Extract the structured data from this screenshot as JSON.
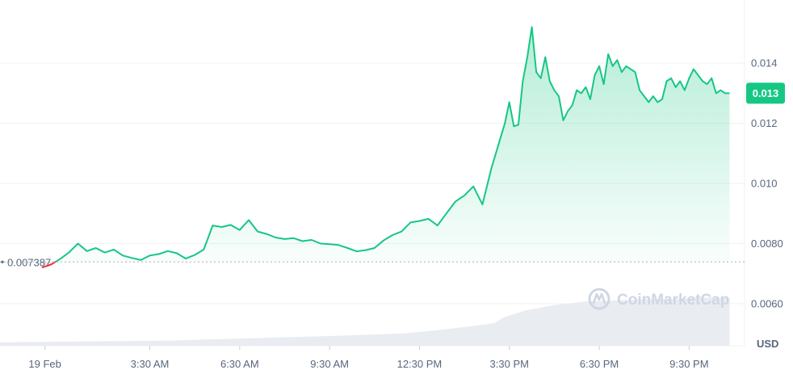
{
  "chart_data": {
    "type": "area",
    "currency": "USD",
    "reference_price": 0.007387,
    "reference_label": "0.007387",
    "current_price": 0.013,
    "current_label": "0.013",
    "ylim": [
      0.0046,
      0.0161
    ],
    "y_ticks": [
      {
        "value": 0.014,
        "label": "0.014"
      },
      {
        "value": 0.012,
        "label": "0.012"
      },
      {
        "value": 0.01,
        "label": "0.010"
      },
      {
        "value": 0.008,
        "label": "0.0080"
      },
      {
        "value": 0.006,
        "label": "0.0060"
      }
    ],
    "xlim": [
      -1.5,
      23.35
    ],
    "x_ticks": [
      {
        "value": 0,
        "label": "19 Feb"
      },
      {
        "value": 3.5,
        "label": "3:30 AM"
      },
      {
        "value": 6.5,
        "label": "6:30 AM"
      },
      {
        "value": 9.5,
        "label": "9:30 AM"
      },
      {
        "value": 12.5,
        "label": "12:30 PM"
      },
      {
        "value": 15.5,
        "label": "3:30 PM"
      },
      {
        "value": 18.5,
        "label": "6:30 PM"
      },
      {
        "value": 21.5,
        "label": "9:30 PM"
      }
    ],
    "price_series": {
      "x": [
        -0.1,
        0.2,
        0.5,
        0.8,
        1.1,
        1.4,
        1.7,
        2.0,
        2.3,
        2.6,
        2.9,
        3.2,
        3.5,
        3.8,
        4.1,
        4.4,
        4.7,
        5.0,
        5.3,
        5.6,
        5.9,
        6.2,
        6.5,
        6.8,
        7.1,
        7.4,
        7.7,
        8.0,
        8.3,
        8.6,
        8.9,
        9.2,
        9.5,
        9.8,
        10.1,
        10.4,
        10.7,
        11.0,
        11.3,
        11.6,
        11.9,
        12.2,
        12.5,
        12.8,
        13.1,
        13.4,
        13.7,
        14.0,
        14.3,
        14.6,
        14.9,
        15.2,
        15.35,
        15.5,
        15.65,
        15.8,
        15.95,
        16.1,
        16.25,
        16.4,
        16.55,
        16.7,
        16.85,
        17.0,
        17.15,
        17.3,
        17.45,
        17.6,
        17.75,
        17.9,
        18.05,
        18.2,
        18.35,
        18.5,
        18.65,
        18.8,
        18.95,
        19.1,
        19.25,
        19.4,
        19.55,
        19.7,
        19.85,
        20.0,
        20.15,
        20.3,
        20.45,
        20.6,
        20.75,
        20.9,
        21.05,
        21.2,
        21.35,
        21.5,
        21.65,
        21.8,
        21.95,
        22.1,
        22.25,
        22.4,
        22.55,
        22.7,
        22.85
      ],
      "y": [
        0.0072,
        0.0073,
        0.00748,
        0.0077,
        0.008,
        0.00775,
        0.00785,
        0.0077,
        0.0078,
        0.0076,
        0.00752,
        0.00745,
        0.0076,
        0.00765,
        0.00775,
        0.00768,
        0.0075,
        0.00762,
        0.0078,
        0.0086,
        0.00855,
        0.00862,
        0.00845,
        0.00878,
        0.0084,
        0.00832,
        0.0082,
        0.00815,
        0.00818,
        0.00808,
        0.00812,
        0.008,
        0.00798,
        0.00795,
        0.00785,
        0.00774,
        0.00778,
        0.00785,
        0.0081,
        0.00828,
        0.0084,
        0.0087,
        0.00875,
        0.00882,
        0.0086,
        0.009,
        0.0094,
        0.0096,
        0.0099,
        0.0093,
        0.0105,
        0.0115,
        0.012,
        0.0127,
        0.0119,
        0.01195,
        0.0134,
        0.0142,
        0.0152,
        0.0137,
        0.0135,
        0.0142,
        0.0134,
        0.0131,
        0.0129,
        0.0121,
        0.0124,
        0.0126,
        0.0131,
        0.013,
        0.0132,
        0.0128,
        0.0136,
        0.0139,
        0.0133,
        0.0143,
        0.0139,
        0.0141,
        0.0137,
        0.0139,
        0.0138,
        0.0137,
        0.0131,
        0.0129,
        0.0127,
        0.0129,
        0.0127,
        0.0128,
        0.0134,
        0.0135,
        0.0132,
        0.0134,
        0.0131,
        0.0135,
        0.0138,
        0.0136,
        0.0134,
        0.0133,
        0.0135,
        0.013,
        0.0131,
        0.013,
        0.013
      ]
    },
    "volume_series": {
      "x": [
        -1.5,
        0,
        2,
        4,
        6,
        8,
        10,
        12,
        13,
        14,
        15,
        15.3,
        16,
        17,
        18,
        19,
        20,
        21,
        22,
        22.85
      ],
      "y": [
        0.06,
        0.07,
        0.08,
        0.09,
        0.12,
        0.15,
        0.18,
        0.22,
        0.27,
        0.33,
        0.4,
        0.5,
        0.62,
        0.72,
        0.78,
        0.8,
        0.82,
        0.83,
        0.85,
        0.85
      ]
    }
  },
  "watermark": {
    "text": "CoinMarketCap"
  },
  "axis": {
    "unit_label": "USD"
  },
  "colors": {
    "up": "#16c784",
    "down": "#ea3943",
    "grid": "#eff2f5",
    "axis_text": "#58667e",
    "volume": "#e9ecf1"
  }
}
